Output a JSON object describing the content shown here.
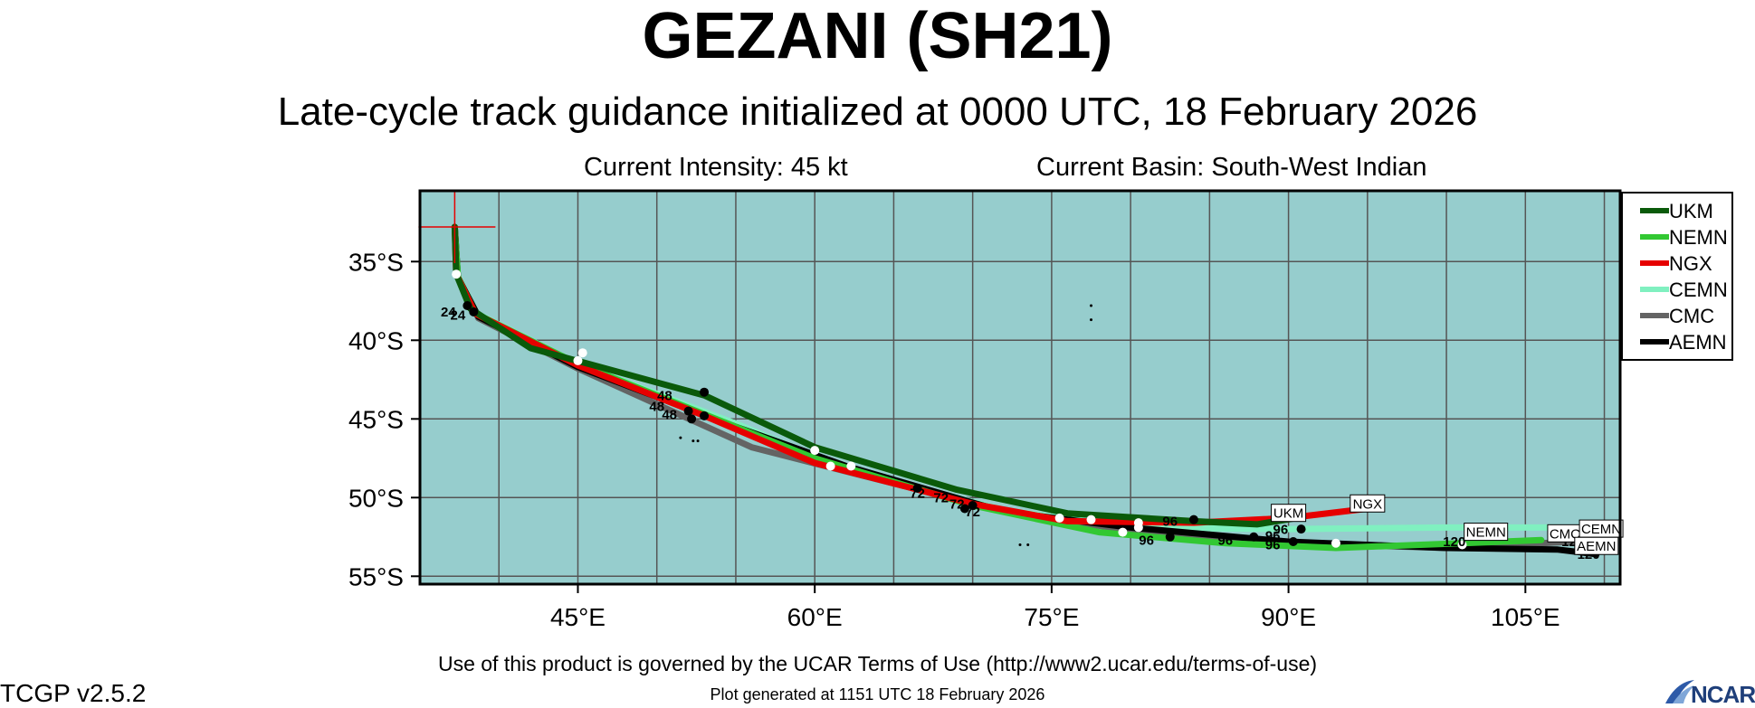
{
  "header": {
    "title": "GEZANI (SH21)",
    "subtitle": "Late-cycle track guidance initialized at 0000 UTC, 18 February 2026",
    "intensity": "Current Intensity: 45 kt",
    "basin": "Current Basin: South-West Indian"
  },
  "footer": {
    "terms": "Use of this product is governed by the UCAR Terms of Use (http://www2.ucar.edu/terms-of-use)",
    "generated": "Plot generated at 1151 UTC   18 February 2026",
    "version": "TCGP v2.5.2",
    "logo_text": "NCAR",
    "logo_icon": "ncar-logo-icon"
  },
  "colors": {
    "ocean": "#96cdcd",
    "grid": "#555555",
    "UKM": "#0a5a0a",
    "NEMN": "#32c832",
    "NGX": "#e60000",
    "CEMN": "#80f0c0",
    "CMC": "#646464",
    "AEMN": "#000000"
  },
  "chart_data": {
    "type": "line",
    "xlim": [
      35,
      111
    ],
    "ylim": [
      -55.5,
      -30.5
    ],
    "x_ticks": [
      45,
      60,
      75,
      90,
      105
    ],
    "x_tick_labels": [
      "45°E",
      "60°E",
      "75°E",
      "90°E",
      "105°E"
    ],
    "y_ticks": [
      -35,
      -40,
      -45,
      -50,
      -55
    ],
    "y_tick_labels": [
      "35°S",
      "40°S",
      "45°S",
      "50°S",
      "55°S"
    ],
    "grid": true,
    "legend_position": "right",
    "current_position": {
      "lon": 37.2,
      "lat": -32.8
    },
    "series": [
      {
        "name": "UKM",
        "lon": [
          37.2,
          37.3,
          38.2,
          42.0,
          53.0,
          60.0,
          69.0,
          76.0,
          84.0,
          88.0,
          90.5
        ],
        "lat": [
          -32.8,
          -35.8,
          -38.0,
          -40.5,
          -43.5,
          -46.8,
          -49.5,
          -51.0,
          -51.5,
          -51.7,
          -51.3
        ]
      },
      {
        "name": "NEMN",
        "lon": [
          37.2,
          37.4,
          38.5,
          45.0,
          53.0,
          60.0,
          70.0,
          78.0,
          86.0,
          93.0,
          101.0,
          106.0
        ],
        "lat": [
          -32.8,
          -36.0,
          -38.3,
          -41.5,
          -44.7,
          -47.5,
          -50.5,
          -52.2,
          -52.9,
          -53.2,
          -52.9,
          -52.7
        ]
      },
      {
        "name": "NGX",
        "lon": [
          37.2,
          37.3,
          38.5,
          45.0,
          53.0,
          60.0,
          70.0,
          76.0,
          84.0,
          90.0,
          95.0
        ],
        "lat": [
          -32.8,
          -35.8,
          -38.3,
          -41.6,
          -44.8,
          -47.8,
          -50.4,
          -51.5,
          -51.6,
          -51.3,
          -50.7
        ]
      },
      {
        "name": "CEMN",
        "lon": [
          37.2,
          37.4,
          38.6,
          45.0,
          55.0,
          62.0,
          72.0,
          80.0,
          90.0,
          100.0,
          107.0,
          110.0
        ],
        "lat": [
          -32.8,
          -35.9,
          -38.3,
          -41.5,
          -45.3,
          -48.2,
          -50.8,
          -51.9,
          -52.0,
          -51.9,
          -51.9,
          -52.1
        ]
      },
      {
        "name": "CMC",
        "lon": [
          37.2,
          37.4,
          38.7,
          45.0,
          56.0,
          63.0,
          73.0,
          81.0,
          90.0,
          100.0,
          108.0
        ],
        "lat": [
          -32.8,
          -36.0,
          -38.6,
          -41.8,
          -46.8,
          -48.6,
          -51.1,
          -52.2,
          -52.9,
          -53.2,
          -52.8
        ]
      },
      {
        "name": "AEMN",
        "lon": [
          37.2,
          37.4,
          38.7,
          45.0,
          55.0,
          62.0,
          72.0,
          80.0,
          90.0,
          100.0,
          107.0,
          109.5
        ],
        "lat": [
          -32.8,
          -36.0,
          -38.5,
          -41.7,
          -45.5,
          -48.0,
          -50.9,
          -51.9,
          -52.8,
          -53.2,
          -53.3,
          -53.6
        ]
      }
    ],
    "end_labels": [
      {
        "text": "UKM",
        "lon": 90.0,
        "lat": -51.0
      },
      {
        "text": "NGX",
        "lon": 95.0,
        "lat": -50.4
      },
      {
        "text": "NEMN",
        "lon": 102.5,
        "lat": -52.2
      },
      {
        "text": "CMC",
        "lon": 107.5,
        "lat": -52.3
      },
      {
        "text": "CEMN",
        "lon": 109.8,
        "lat": -52.0
      },
      {
        "text": "AEMN",
        "lon": 109.5,
        "lat": -53.1
      }
    ],
    "hour_labels": [
      {
        "text": "24",
        "lon": 36.8,
        "lat": -38.5
      },
      {
        "text": "24",
        "lon": 37.4,
        "lat": -38.7
      },
      {
        "text": "48",
        "lon": 50.5,
        "lat": -43.8
      },
      {
        "text": "48",
        "lon": 50.0,
        "lat": -44.5
      },
      {
        "text": "48",
        "lon": 50.8,
        "lat": -45.0
      },
      {
        "text": "72",
        "lon": 66.5,
        "lat": -50.0
      },
      {
        "text": "72",
        "lon": 68.0,
        "lat": -50.3
      },
      {
        "text": "72",
        "lon": 69.0,
        "lat": -50.7
      },
      {
        "text": "72",
        "lon": 70.0,
        "lat": -51.2
      },
      {
        "text": "96",
        "lon": 82.5,
        "lat": -51.8
      },
      {
        "text": "96",
        "lon": 81.0,
        "lat": -53.0
      },
      {
        "text": "96",
        "lon": 86.0,
        "lat": -53.0
      },
      {
        "text": "96",
        "lon": 89.5,
        "lat": -52.3
      },
      {
        "text": "96",
        "lon": 89.0,
        "lat": -52.7
      },
      {
        "text": "96",
        "lon": 89.0,
        "lat": -53.3
      },
      {
        "text": "120",
        "lon": 100.5,
        "lat": -53.1
      },
      {
        "text": "120",
        "lon": 108.0,
        "lat": -53.1
      },
      {
        "text": "120",
        "lon": 109.0,
        "lat": -53.9
      },
      {
        "text": "120",
        "lon": 109.8,
        "lat": -52.9
      }
    ],
    "black_points": [
      {
        "lon": 38.4,
        "lat": -38.2
      },
      {
        "lon": 38.0,
        "lat": -37.8
      },
      {
        "lon": 53.0,
        "lat": -43.3
      },
      {
        "lon": 53.0,
        "lat": -44.8
      },
      {
        "lon": 52.0,
        "lat": -44.5
      },
      {
        "lon": 52.2,
        "lat": -45.0
      },
      {
        "lon": 66.5,
        "lat": -49.4
      },
      {
        "lon": 69.5,
        "lat": -50.7
      },
      {
        "lon": 70.0,
        "lat": -50.5
      },
      {
        "lon": 84.0,
        "lat": -51.4
      },
      {
        "lon": 82.5,
        "lat": -52.5
      },
      {
        "lon": 87.8,
        "lat": -52.5
      },
      {
        "lon": 90.8,
        "lat": -52.0
      },
      {
        "lon": 90.3,
        "lat": -52.8
      }
    ],
    "white_points": [
      {
        "lon": 37.3,
        "lat": -35.8
      },
      {
        "lon": 45.3,
        "lat": -40.8
      },
      {
        "lon": 45.0,
        "lat": -41.3
      },
      {
        "lon": 60.0,
        "lat": -47.0
      },
      {
        "lon": 61.0,
        "lat": -48.0
      },
      {
        "lon": 62.3,
        "lat": -48.0
      },
      {
        "lon": 75.5,
        "lat": -51.3
      },
      {
        "lon": 77.5,
        "lat": -51.4
      },
      {
        "lon": 79.5,
        "lat": -52.2
      },
      {
        "lon": 80.5,
        "lat": -51.9
      },
      {
        "lon": 80.5,
        "lat": -51.6
      },
      {
        "lon": 93.0,
        "lat": -52.9
      },
      {
        "lon": 101.0,
        "lat": -53.0
      }
    ],
    "islands": [
      {
        "lon": 51.5,
        "lat": -46.2
      },
      {
        "lon": 52.3,
        "lat": -46.4
      },
      {
        "lon": 52.6,
        "lat": -46.4
      },
      {
        "lon": 77.5,
        "lat": -37.8
      },
      {
        "lon": 77.5,
        "lat": -38.7
      },
      {
        "lon": 73.5,
        "lat": -53.0
      },
      {
        "lon": 73.0,
        "lat": -53.0
      }
    ]
  }
}
